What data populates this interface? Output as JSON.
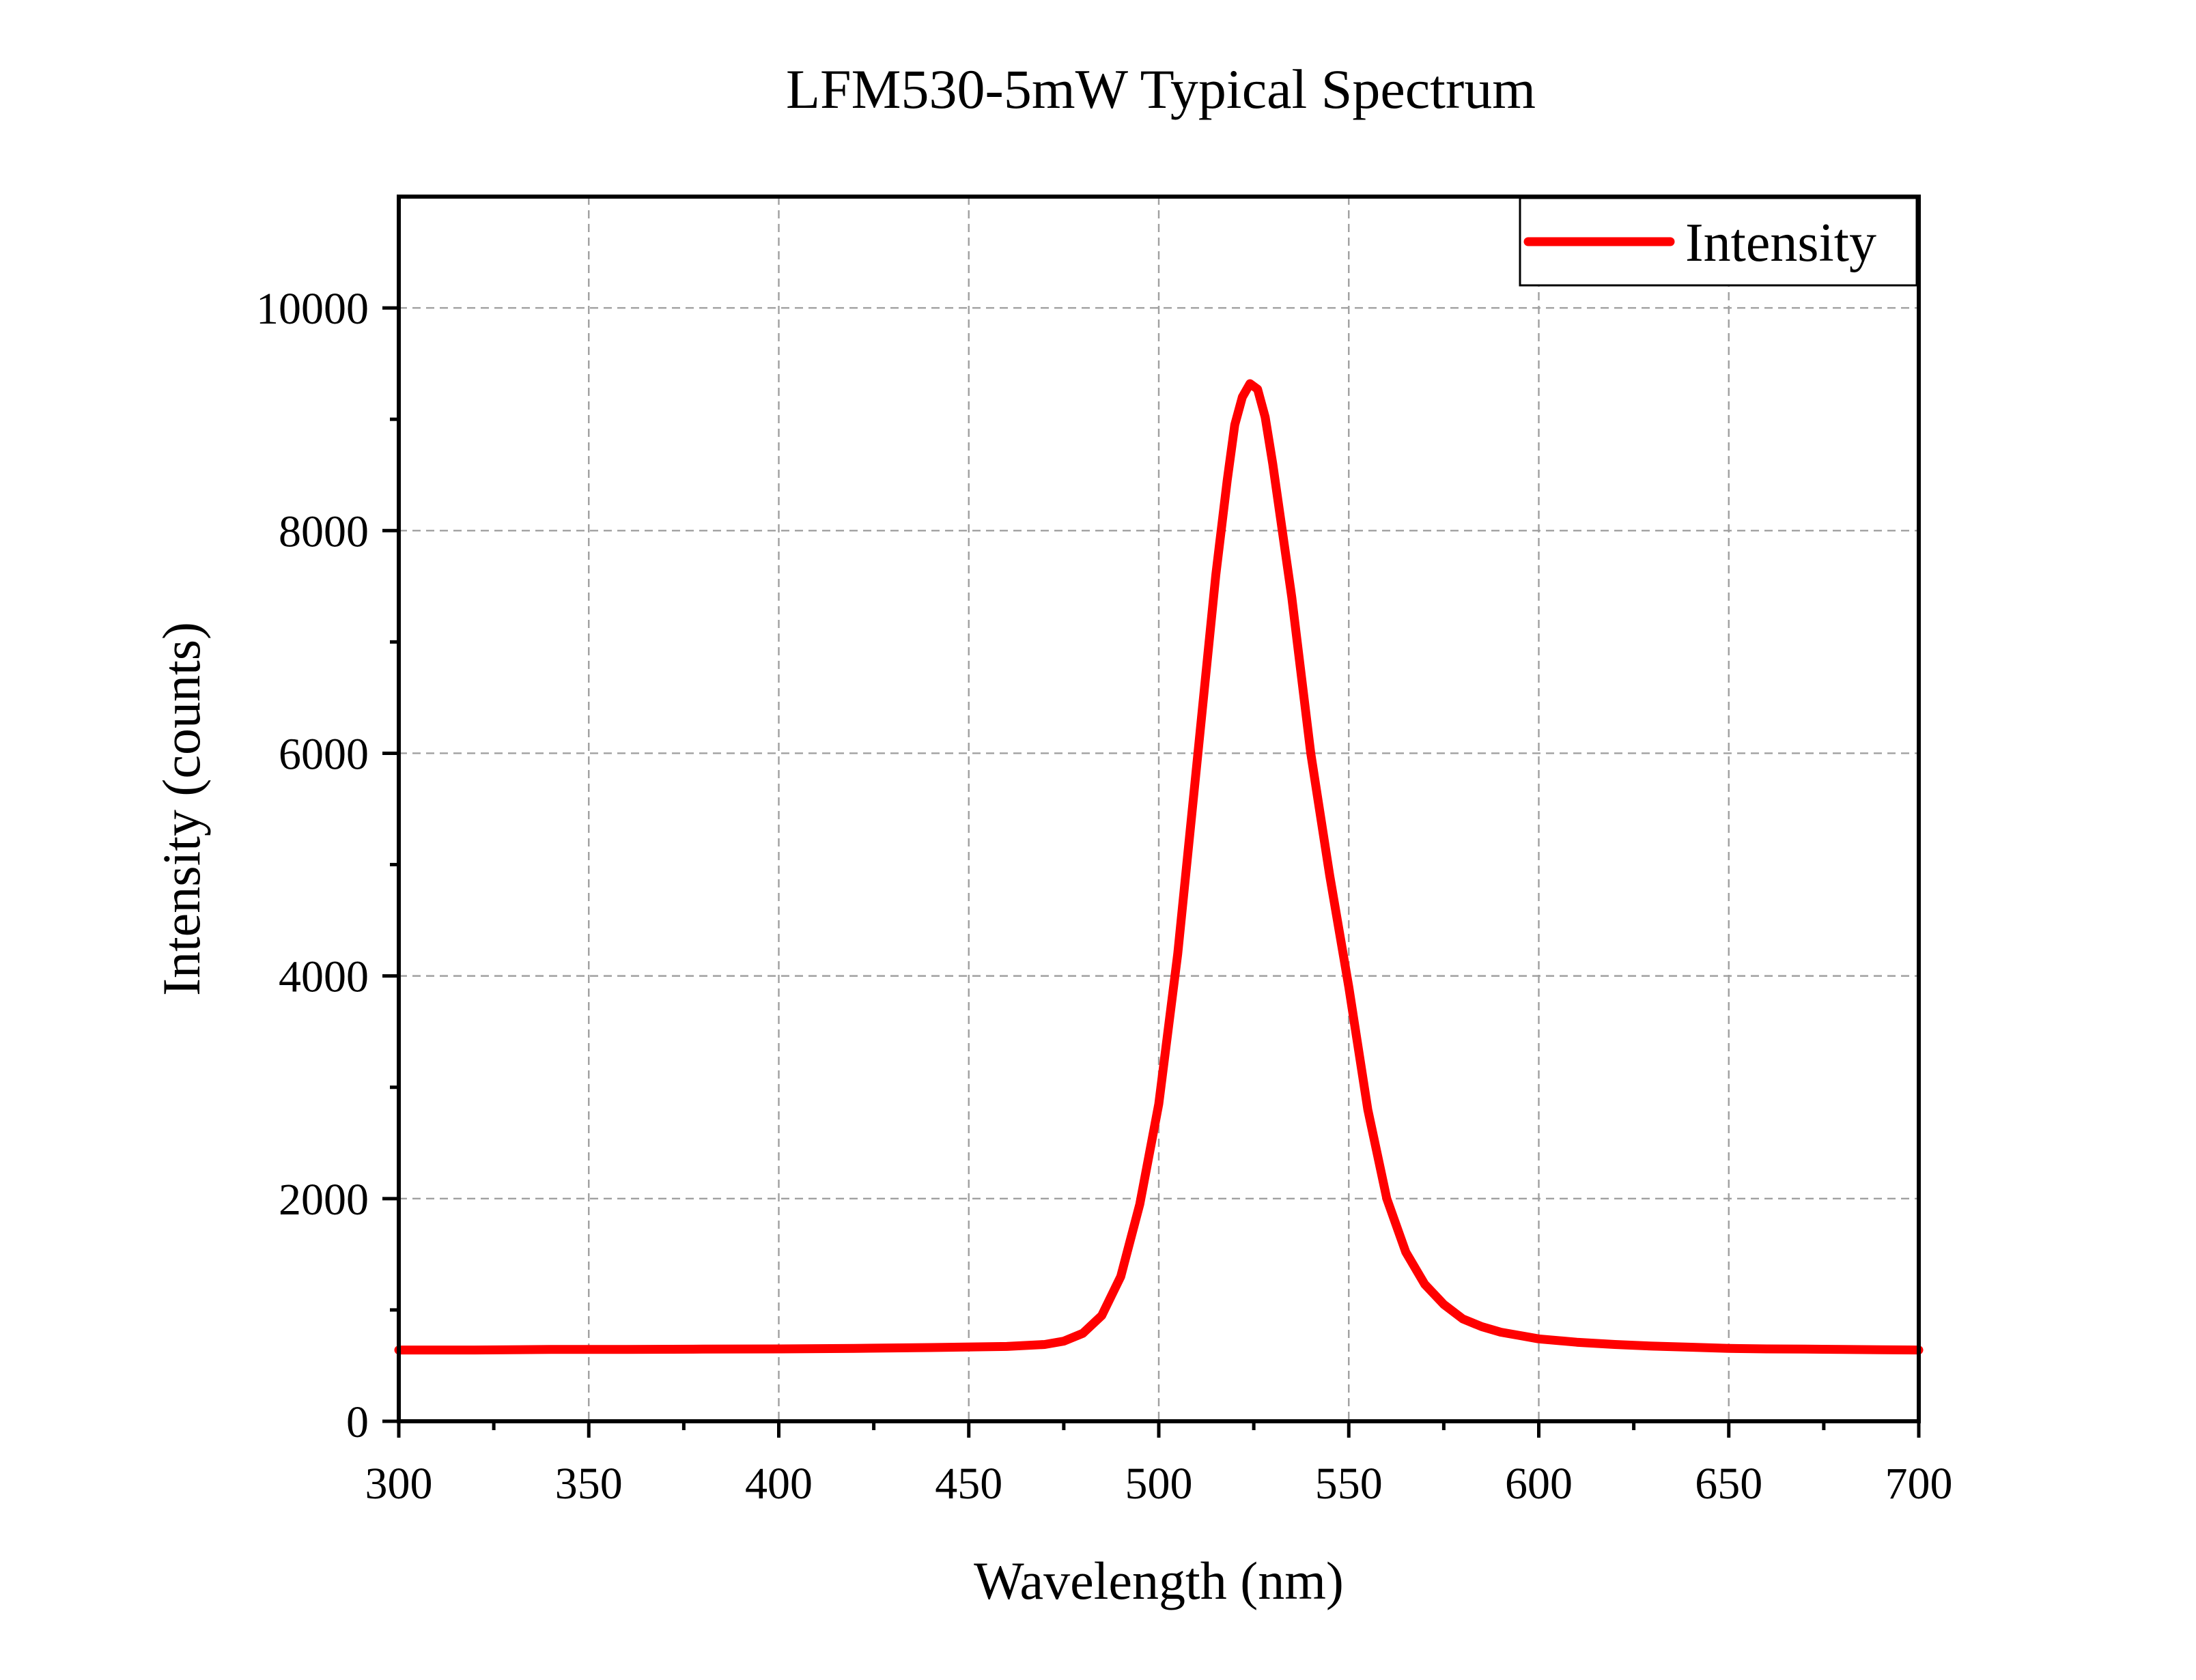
{
  "chart_data": {
    "type": "line",
    "title": "LFM530-5mW Typical Spectrum",
    "xlabel": "Wavelength (nm)",
    "ylabel": "Intensity (counts)",
    "xlim": [
      300,
      700
    ],
    "ylim": [
      0,
      11000
    ],
    "x_ticks": [
      300,
      350,
      400,
      450,
      500,
      550,
      600,
      650,
      700
    ],
    "y_ticks": [
      0,
      2000,
      4000,
      6000,
      8000,
      10000
    ],
    "grid": true,
    "legend_position": "top-right",
    "series": [
      {
        "name": "Intensity",
        "color": "#ff0000",
        "x": [
          300,
          320,
          340,
          360,
          380,
          400,
          420,
          440,
          460,
          470,
          475,
          480,
          485,
          490,
          495,
          500,
          505,
          510,
          515,
          518,
          520,
          522,
          524,
          526,
          528,
          530,
          535,
          540,
          545,
          550,
          555,
          560,
          565,
          570,
          575,
          580,
          585,
          590,
          595,
          600,
          610,
          620,
          630,
          640,
          650,
          660,
          670,
          680,
          690,
          700
        ],
        "values": [
          640,
          640,
          645,
          645,
          648,
          650,
          655,
          662,
          672,
          690,
          720,
          790,
          950,
          1300,
          1950,
          2850,
          4200,
          5900,
          7600,
          8450,
          8950,
          9200,
          9320,
          9270,
          9020,
          8600,
          7400,
          6000,
          4900,
          3900,
          2800,
          2000,
          1520,
          1230,
          1050,
          920,
          850,
          800,
          770,
          740,
          710,
          690,
          675,
          665,
          655,
          650,
          648,
          645,
          642,
          640
        ]
      }
    ]
  }
}
